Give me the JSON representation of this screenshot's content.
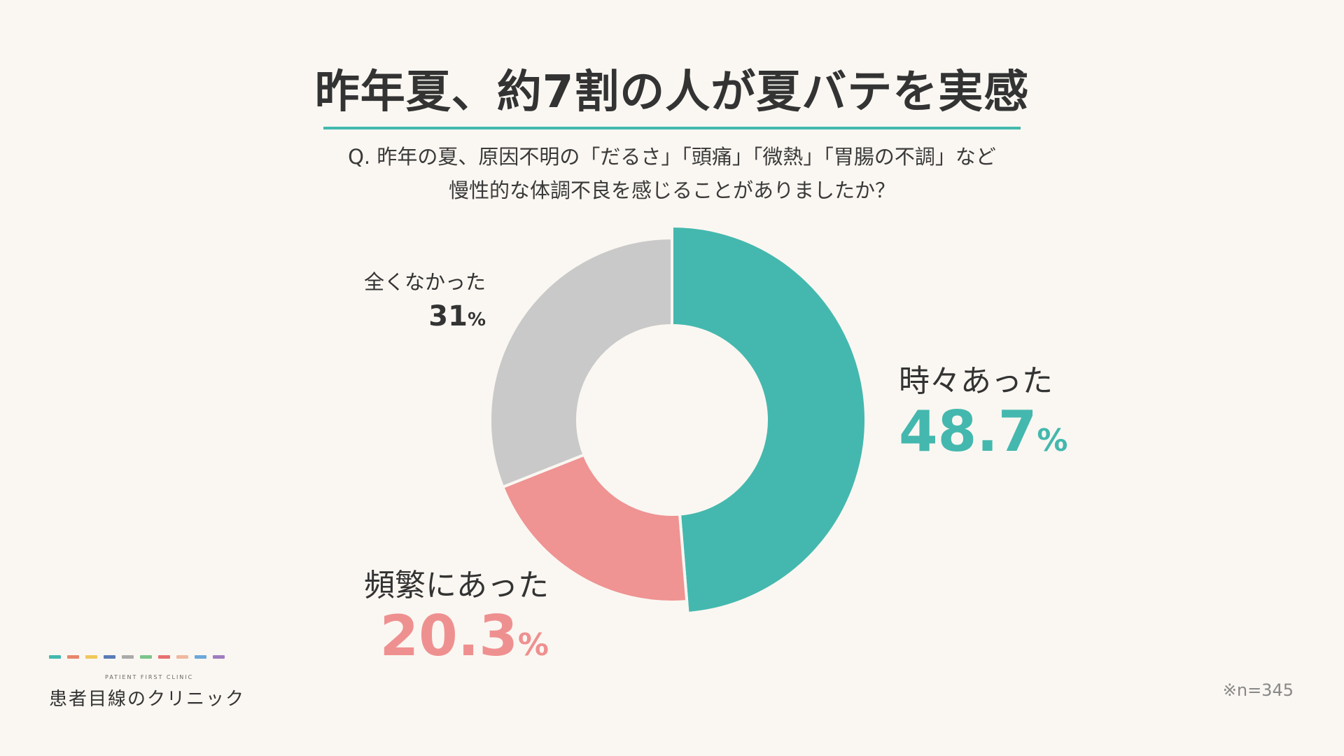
{
  "title": "昨年夏、約7割の人が夏バテを実感",
  "question": {
    "line1": "Q. 昨年の夏、原因不明の「だるさ」「頭痛」「微熱」「胃腸の不調」など",
    "line2": "慢性的な体調不良を感じることがありましたか？"
  },
  "chart_data": {
    "type": "pie",
    "categories": [
      "時々あった",
      "頻繁にあった",
      "全くなかった"
    ],
    "values": [
      48.7,
      20.3,
      31
    ],
    "value_labels": [
      "48.7",
      "20.3",
      "31"
    ],
    "unit": "%",
    "colors": [
      "#44b8ae",
      "#ef9393",
      "#c9c9c9"
    ],
    "donut": true,
    "start": "top",
    "direction": "clockwise",
    "legend": "none"
  },
  "footnote": "※n=345",
  "logo": {
    "english": "PATIENT FIRST CLINIC",
    "japanese": "患者目線のクリニック",
    "dash_colors": [
      "#44b8ae",
      "#e8876b",
      "#f0c85a",
      "#5a7bb8",
      "#aaaaaa",
      "#7cc48a",
      "#e87070",
      "#f0b8a0",
      "#6ba8d8",
      "#a07cc0"
    ]
  }
}
